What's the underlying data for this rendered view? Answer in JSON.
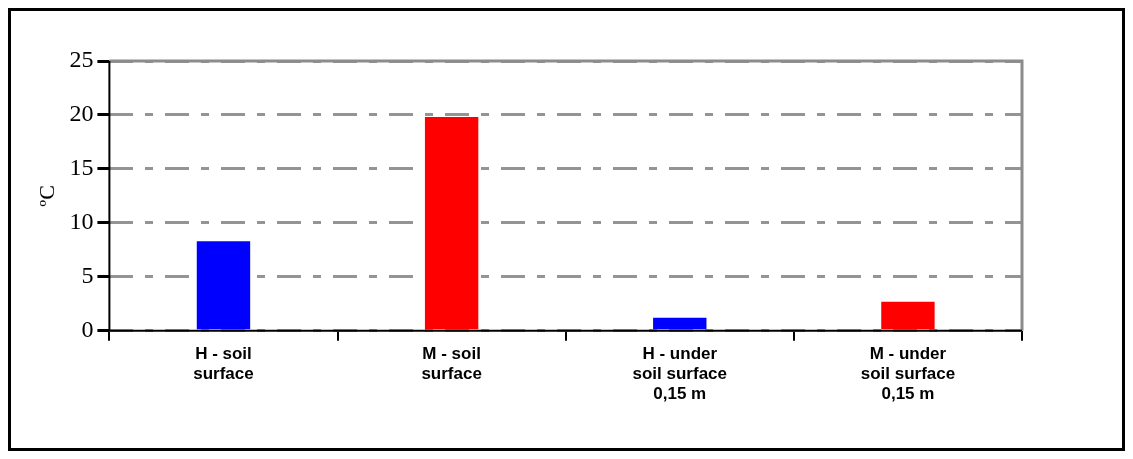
{
  "chart_data": {
    "type": "bar",
    "ylabel": "ºC",
    "categories": [
      "H - soil surface",
      "M - soil surface",
      "H - under soil surface 0,15 m",
      "M - under soil surface 0,15 m"
    ],
    "values": [
      8.3,
      19.8,
      1.2,
      2.7
    ],
    "colors": [
      "#0000ff",
      "#ff0000",
      "#0000ff",
      "#ff0000"
    ],
    "ylim": [
      0,
      25
    ],
    "yticks": [
      0,
      5,
      10,
      15,
      20,
      25
    ],
    "grid": "y",
    "legend": false
  }
}
